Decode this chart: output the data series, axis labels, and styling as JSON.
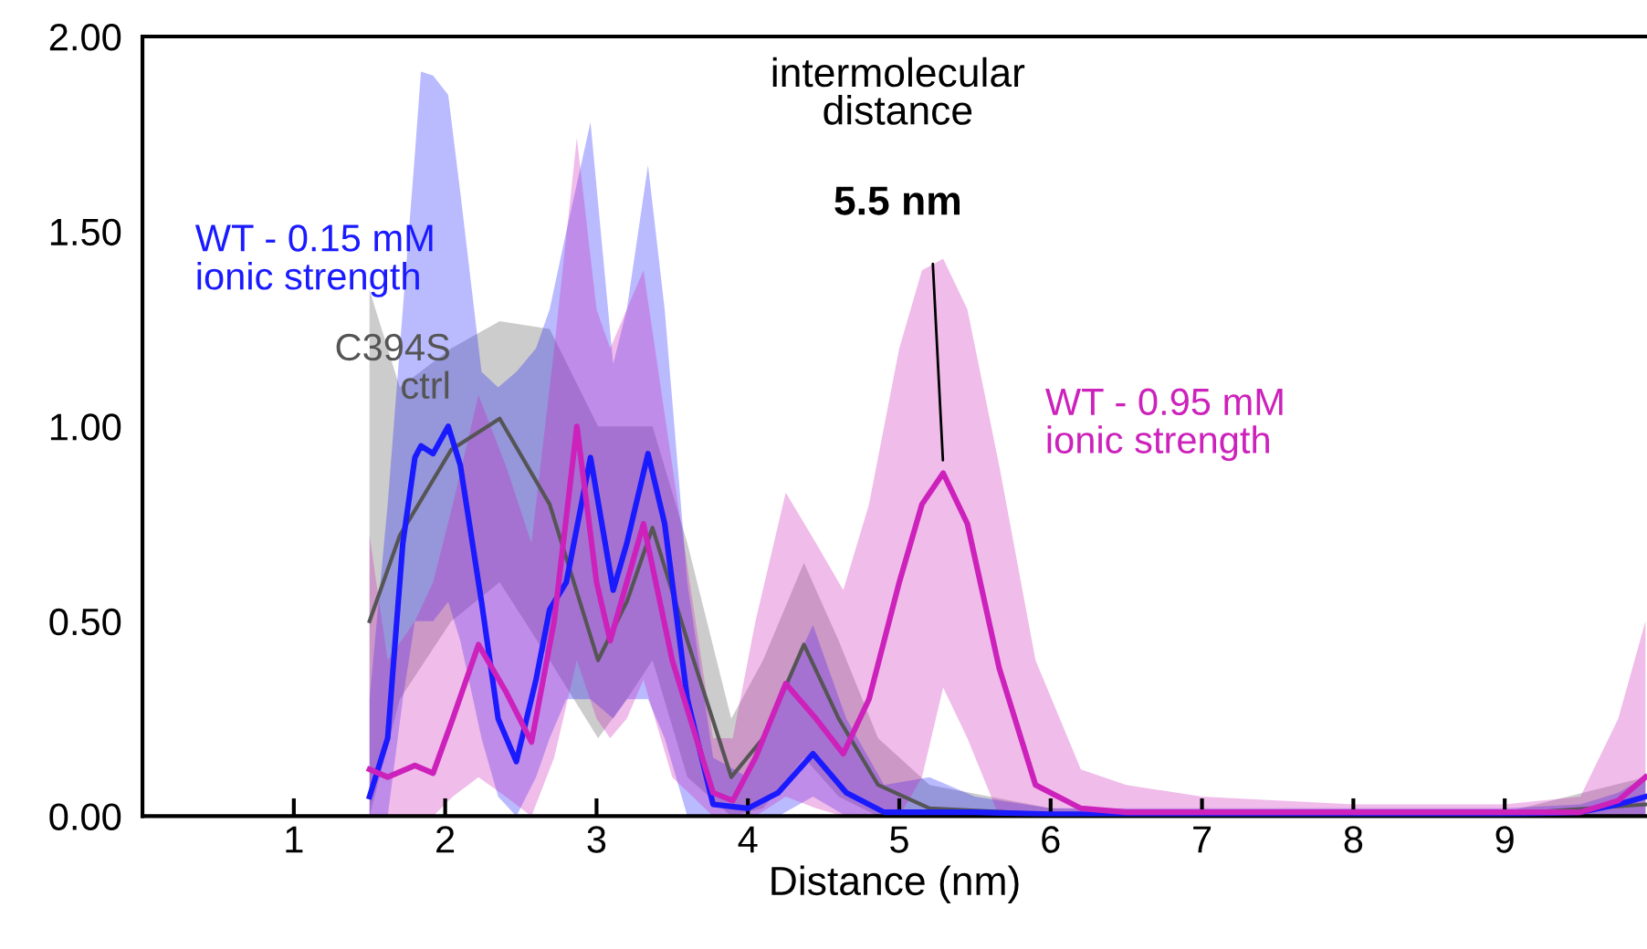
{
  "chart_data": {
    "type": "line",
    "xlabel": "Distance (nm)",
    "xlim": [
      0,
      9.94
    ],
    "xticks": [
      1,
      2,
      3,
      4,
      5,
      6,
      7,
      8,
      9
    ],
    "ylim": [
      0,
      2
    ],
    "yticks": [
      {
        "value": 0,
        "label": "0.00"
      },
      {
        "value": 0.5,
        "label": "0.50"
      },
      {
        "value": 1,
        "label": "1.00"
      },
      {
        "value": 1.5,
        "label": "1.50"
      },
      {
        "value": 2,
        "label": "2.00"
      }
    ],
    "grid": false,
    "legend": false,
    "marker": "none",
    "line_style": "solid",
    "series": [
      {
        "name": "C394S\nctrl",
        "color": "#555555",
        "x": [
          1.5,
          1.7,
          2.04,
          2.36,
          2.69,
          3.01,
          3.2,
          3.37,
          3.6,
          3.89,
          4.1,
          4.37,
          4.6,
          4.86,
          5.2,
          6,
          7,
          8,
          9,
          9.93
        ],
        "values": [
          0.5,
          0.72,
          0.94,
          1.02,
          0.8,
          0.4,
          0.55,
          0.74,
          0.45,
          0.1,
          0.2,
          0.44,
          0.25,
          0.08,
          0.02,
          0.005,
          0.005,
          0.005,
          0.005,
          0.03
        ],
        "lower": [
          0,
          0.3,
          0.5,
          0.6,
          0.4,
          0.2,
          0.3,
          0.4,
          0.1,
          0,
          0.02,
          0.15,
          0.05,
          0,
          0,
          0,
          0,
          0,
          0,
          0
        ],
        "upper": [
          1.35,
          1.1,
          1.2,
          1.27,
          1.25,
          1.0,
          1.0,
          1.0,
          0.7,
          0.25,
          0.4,
          0.65,
          0.45,
          0.2,
          0.08,
          0.02,
          0.01,
          0.01,
          0.01,
          0.1
        ]
      },
      {
        "name": "WT - 0.15 mM\nionic strength",
        "color": "#1a1aff",
        "x": [
          1.5,
          1.62,
          1.72,
          1.8,
          1.84,
          1.92,
          2.02,
          2.1,
          2.24,
          2.35,
          2.47,
          2.6,
          2.69,
          2.8,
          2.96,
          3.11,
          3.2,
          3.34,
          3.45,
          3.6,
          3.77,
          4.0,
          4.2,
          4.43,
          4.65,
          4.9,
          5.2,
          5.5,
          6,
          7,
          8,
          9,
          9.5,
          9.75,
          9.93
        ],
        "values": [
          0.05,
          0.2,
          0.7,
          0.92,
          0.95,
          0.93,
          1.0,
          0.9,
          0.55,
          0.25,
          0.14,
          0.35,
          0.53,
          0.6,
          0.92,
          0.58,
          0.7,
          0.93,
          0.75,
          0.3,
          0.03,
          0.02,
          0.06,
          0.16,
          0.06,
          0.01,
          0.01,
          0.01,
          0.005,
          0.005,
          0.005,
          0.005,
          0.01,
          0.03,
          0.05
        ],
        "lower": [
          0,
          0,
          0.3,
          0.5,
          0.5,
          0.5,
          0.55,
          0.45,
          0.2,
          0.05,
          0,
          0.1,
          0.2,
          0.3,
          0.3,
          0.25,
          0.3,
          0.3,
          0.2,
          0,
          0,
          0,
          0,
          0.05,
          0,
          0,
          0,
          0,
          0,
          0,
          0,
          0,
          0,
          0,
          0
        ],
        "upper": [
          0.3,
          0.8,
          1.3,
          1.7,
          1.91,
          1.9,
          1.85,
          1.6,
          1.14,
          1.1,
          1.14,
          1.2,
          1.3,
          1.5,
          1.78,
          1.16,
          1.3,
          1.67,
          1.3,
          0.6,
          0.15,
          0.1,
          0.3,
          0.49,
          0.25,
          0.08,
          0.1,
          0.05,
          0.02,
          0.02,
          0.02,
          0.02,
          0.03,
          0.06,
          0.1
        ]
      },
      {
        "name": "WT - 0.95 mM\nionic strength",
        "color": "#cc22bb",
        "x": [
          1.5,
          1.62,
          1.8,
          1.92,
          2.05,
          2.22,
          2.4,
          2.57,
          2.72,
          2.87,
          3.0,
          3.09,
          3.2,
          3.31,
          3.5,
          3.77,
          3.9,
          4.05,
          4.25,
          4.45,
          4.63,
          4.8,
          5.0,
          5.15,
          5.29,
          5.45,
          5.66,
          5.9,
          6.2,
          6.5,
          7,
          8,
          9,
          9.5,
          9.75,
          9.93
        ],
        "values": [
          0.12,
          0.1,
          0.13,
          0.11,
          0.25,
          0.44,
          0.32,
          0.19,
          0.5,
          1.0,
          0.6,
          0.45,
          0.6,
          0.75,
          0.4,
          0.06,
          0.04,
          0.15,
          0.34,
          0.25,
          0.16,
          0.3,
          0.6,
          0.8,
          0.88,
          0.75,
          0.38,
          0.08,
          0.02,
          0.01,
          0.01,
          0.01,
          0.01,
          0.01,
          0.04,
          0.1
        ],
        "lower": [
          0,
          0,
          0,
          0,
          0.05,
          0.1,
          0.05,
          0,
          0.15,
          0.4,
          0.25,
          0.2,
          0.25,
          0.35,
          0.1,
          0,
          0,
          0,
          0.05,
          0.02,
          0,
          0,
          0,
          0.1,
          0.33,
          0.2,
          0,
          0,
          0,
          0,
          0,
          0,
          0,
          0,
          0,
          0
        ],
        "upper": [
          0.72,
          0.4,
          0.5,
          0.6,
          0.8,
          1.08,
          0.9,
          0.7,
          1.2,
          1.74,
          1.3,
          1.2,
          1.3,
          1.4,
          0.9,
          0.2,
          0.2,
          0.5,
          0.83,
          0.7,
          0.58,
          0.8,
          1.2,
          1.4,
          1.43,
          1.3,
          0.9,
          0.4,
          0.12,
          0.08,
          0.05,
          0.03,
          0.03,
          0.05,
          0.25,
          0.5
        ]
      }
    ],
    "annotations": [
      "intermolecular\ndistance",
      {
        "text": "5.5 nm",
        "x": 5.29,
        "y": 0.88
      }
    ]
  }
}
